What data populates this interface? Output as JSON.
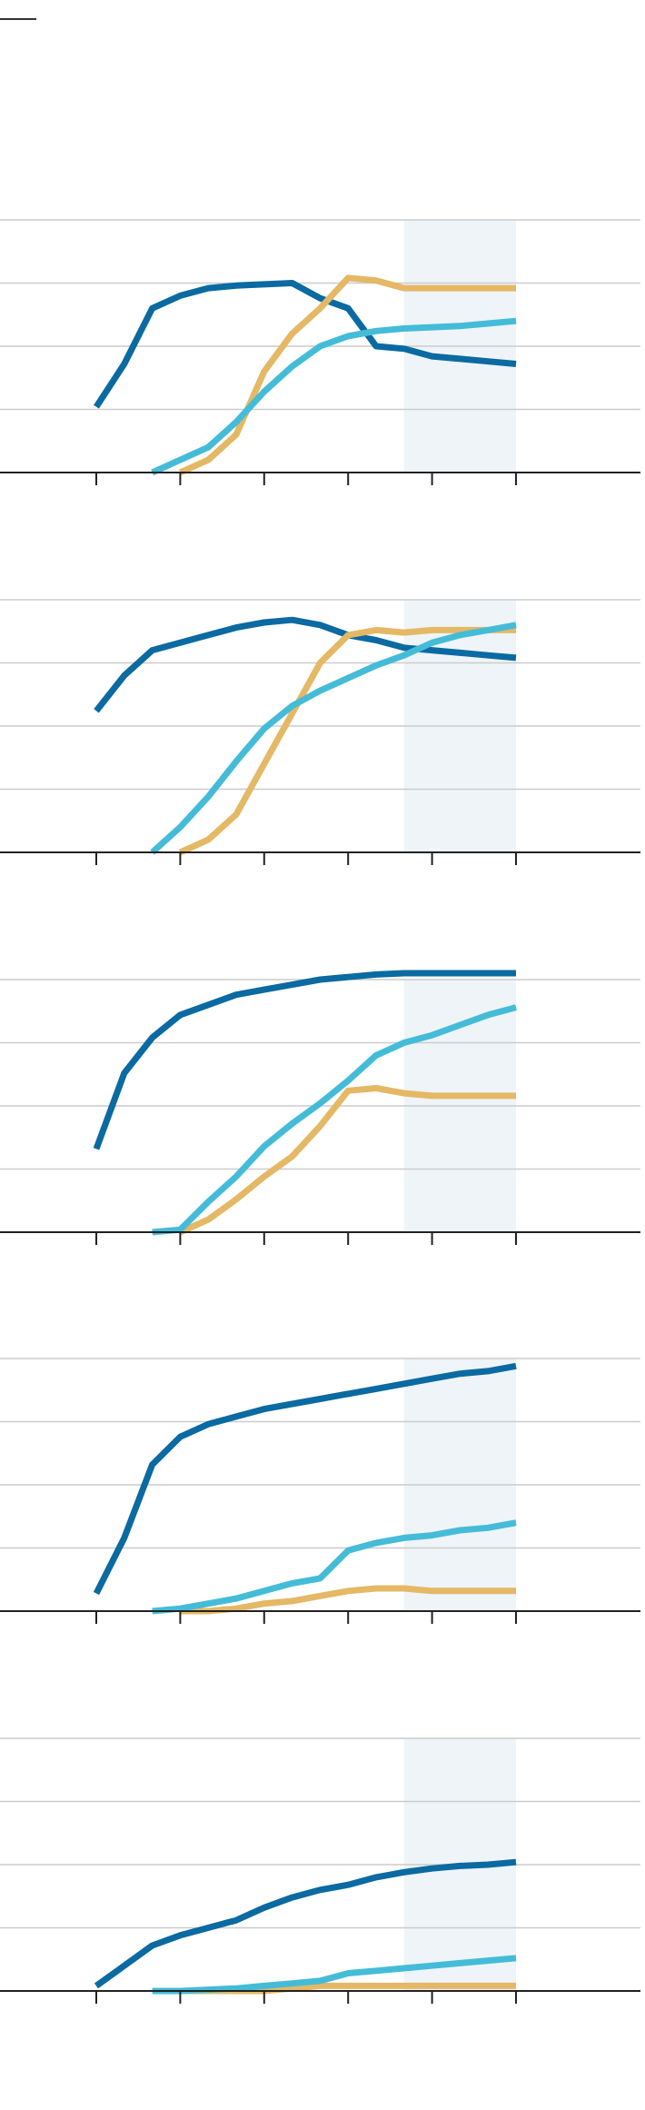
{
  "colors": {
    "series_a": "#0a6aa1",
    "series_b": "#e4b865",
    "series_c": "#44bcd8",
    "grid": "#cccccc",
    "axis": "#222222",
    "projection_band": "#eef4f8"
  },
  "chart_data": [
    {
      "type": "line",
      "title": "",
      "xlabel": "",
      "ylabel": "",
      "xlim": [
        0,
        23
      ],
      "ylim": [
        0,
        100
      ],
      "grid": true,
      "x_ticks": [
        3,
        6,
        9,
        12,
        15,
        18
      ],
      "shaded_x": [
        14,
        18
      ],
      "series": [
        {
          "color": "#0a6aa1",
          "x": [
            3,
            4,
            5,
            6,
            7,
            8,
            9,
            10,
            11,
            12,
            13,
            14,
            15,
            16,
            17,
            18
          ],
          "values": [
            26,
            43,
            65,
            70,
            73,
            74,
            74.5,
            75,
            69,
            65,
            50,
            49,
            46,
            45,
            44,
            43
          ]
        },
        {
          "color": "#e4b865",
          "x": [
            6,
            7,
            8,
            9,
            10,
            11,
            12,
            13,
            14,
            15,
            16,
            17,
            18
          ],
          "values": [
            0,
            5,
            15,
            40,
            55,
            65,
            77,
            76,
            73,
            73,
            73,
            73,
            73
          ]
        },
        {
          "color": "#44bcd8",
          "x": [
            5,
            6,
            7,
            8,
            9,
            10,
            11,
            12,
            13,
            14,
            15,
            16,
            17,
            18
          ],
          "values": [
            0,
            5,
            10,
            20,
            32,
            42,
            50,
            54,
            56,
            57,
            57.5,
            58,
            59,
            60
          ]
        }
      ]
    },
    {
      "type": "line",
      "title": "",
      "xlabel": "",
      "ylabel": "",
      "xlim": [
        0,
        23
      ],
      "ylim": [
        0,
        100
      ],
      "grid": true,
      "x_ticks": [
        3,
        6,
        9,
        12,
        15,
        18
      ],
      "shaded_x": [
        14,
        18
      ],
      "series": [
        {
          "color": "#0a6aa1",
          "x": [
            3,
            4,
            5,
            6,
            7,
            8,
            9,
            10,
            11,
            12,
            13,
            14,
            15,
            16,
            17,
            18
          ],
          "values": [
            56,
            70,
            80,
            83,
            86,
            89,
            91,
            92,
            90,
            86,
            84,
            81,
            80,
            79,
            78,
            77
          ]
        },
        {
          "color": "#e4b865",
          "x": [
            6,
            7,
            8,
            9,
            10,
            11,
            12,
            13,
            14,
            15,
            16,
            17,
            18
          ],
          "values": [
            0,
            5,
            15,
            35,
            55,
            75,
            86,
            88,
            87,
            88,
            88,
            88,
            88
          ]
        },
        {
          "color": "#44bcd8",
          "x": [
            5,
            6,
            7,
            8,
            9,
            10,
            11,
            12,
            13,
            14,
            15,
            16,
            17,
            18
          ],
          "values": [
            0,
            10,
            22,
            36,
            49,
            58,
            64,
            69,
            74,
            78,
            83,
            86,
            88,
            90
          ]
        }
      ]
    },
    {
      "type": "line",
      "title": "",
      "xlabel": "",
      "ylabel": "",
      "xlim": [
        0,
        23
      ],
      "ylim": [
        0,
        100
      ],
      "grid": true,
      "x_ticks": [
        3,
        6,
        9,
        12,
        15,
        18
      ],
      "shaded_x": [
        14,
        18
      ],
      "series": [
        {
          "color": "#0a6aa1",
          "x": [
            3,
            4,
            5,
            6,
            7,
            8,
            9,
            10,
            11,
            12,
            13,
            14,
            15,
            16,
            17,
            18
          ],
          "values": [
            33,
            63,
            77,
            86,
            90,
            94,
            96,
            98,
            100,
            101,
            102,
            102.5,
            102.5,
            102.5,
            102.5,
            102.5
          ]
        },
        {
          "color": "#e4b865",
          "x": [
            6,
            7,
            8,
            9,
            10,
            11,
            12,
            13,
            14,
            15,
            16,
            17,
            18
          ],
          "values": [
            0,
            5,
            13,
            22,
            30,
            42,
            56,
            57,
            55,
            54,
            54,
            54,
            54
          ]
        },
        {
          "color": "#44bcd8",
          "x": [
            5,
            6,
            7,
            8,
            9,
            10,
            11,
            12,
            13,
            14,
            15,
            16,
            17,
            18
          ],
          "values": [
            0,
            1,
            12,
            22,
            34,
            43,
            51,
            60,
            70,
            75,
            78,
            82,
            86,
            89
          ]
        }
      ]
    },
    {
      "type": "line",
      "title": "",
      "xlabel": "",
      "ylabel": "",
      "xlim": [
        0,
        23
      ],
      "ylim": [
        0,
        100
      ],
      "grid": true,
      "x_ticks": [
        3,
        6,
        9,
        12,
        15,
        18
      ],
      "shaded_x": [
        14,
        18
      ],
      "series": [
        {
          "color": "#0a6aa1",
          "x": [
            3,
            4,
            5,
            6,
            7,
            8,
            9,
            10,
            11,
            12,
            13,
            14,
            15,
            16,
            17,
            18
          ],
          "values": [
            7,
            29,
            58,
            69,
            74,
            77,
            80,
            82,
            84,
            86,
            88,
            90,
            92,
            94,
            95,
            97
          ]
        },
        {
          "color": "#e4b865",
          "x": [
            6,
            7,
            8,
            9,
            10,
            11,
            12,
            13,
            14,
            15,
            16,
            17,
            18
          ],
          "values": [
            0,
            0,
            1,
            3,
            4,
            6,
            8,
            9,
            9,
            8,
            8,
            8,
            8
          ]
        },
        {
          "color": "#44bcd8",
          "x": [
            5,
            6,
            7,
            8,
            9,
            10,
            11,
            12,
            13,
            14,
            15,
            16,
            17,
            18
          ],
          "values": [
            0,
            1,
            3,
            5,
            8,
            11,
            13,
            24,
            27,
            29,
            30,
            32,
            33,
            35
          ]
        }
      ]
    },
    {
      "type": "line",
      "title": "",
      "xlabel": "",
      "ylabel": "",
      "xlim": [
        0,
        23
      ],
      "ylim": [
        0,
        100
      ],
      "grid": true,
      "x_ticks": [
        3,
        6,
        9,
        12,
        15,
        18
      ],
      "shaded_x": [
        14,
        18
      ],
      "series": [
        {
          "color": "#0a6aa1",
          "x": [
            3,
            4,
            5,
            6,
            7,
            8,
            9,
            10,
            11,
            12,
            13,
            14,
            15,
            16,
            17,
            18
          ],
          "values": [
            2,
            10,
            18,
            22,
            25,
            28,
            33,
            37,
            40,
            42,
            45,
            47,
            48.5,
            49.5,
            50,
            51
          ]
        },
        {
          "color": "#e4b865",
          "x": [
            6,
            7,
            8,
            9,
            10,
            11,
            12,
            13,
            14,
            15,
            16,
            17,
            18
          ],
          "values": [
            0,
            0,
            0,
            0,
            1,
            2,
            2,
            2,
            2,
            2,
            2,
            2,
            2
          ]
        },
        {
          "color": "#44bcd8",
          "x": [
            5,
            6,
            7,
            8,
            9,
            10,
            11,
            12,
            13,
            14,
            15,
            16,
            17,
            18
          ],
          "values": [
            0,
            0,
            0.5,
            1,
            2,
            3,
            4,
            7,
            8,
            9,
            10,
            11,
            12,
            13
          ]
        }
      ]
    }
  ]
}
